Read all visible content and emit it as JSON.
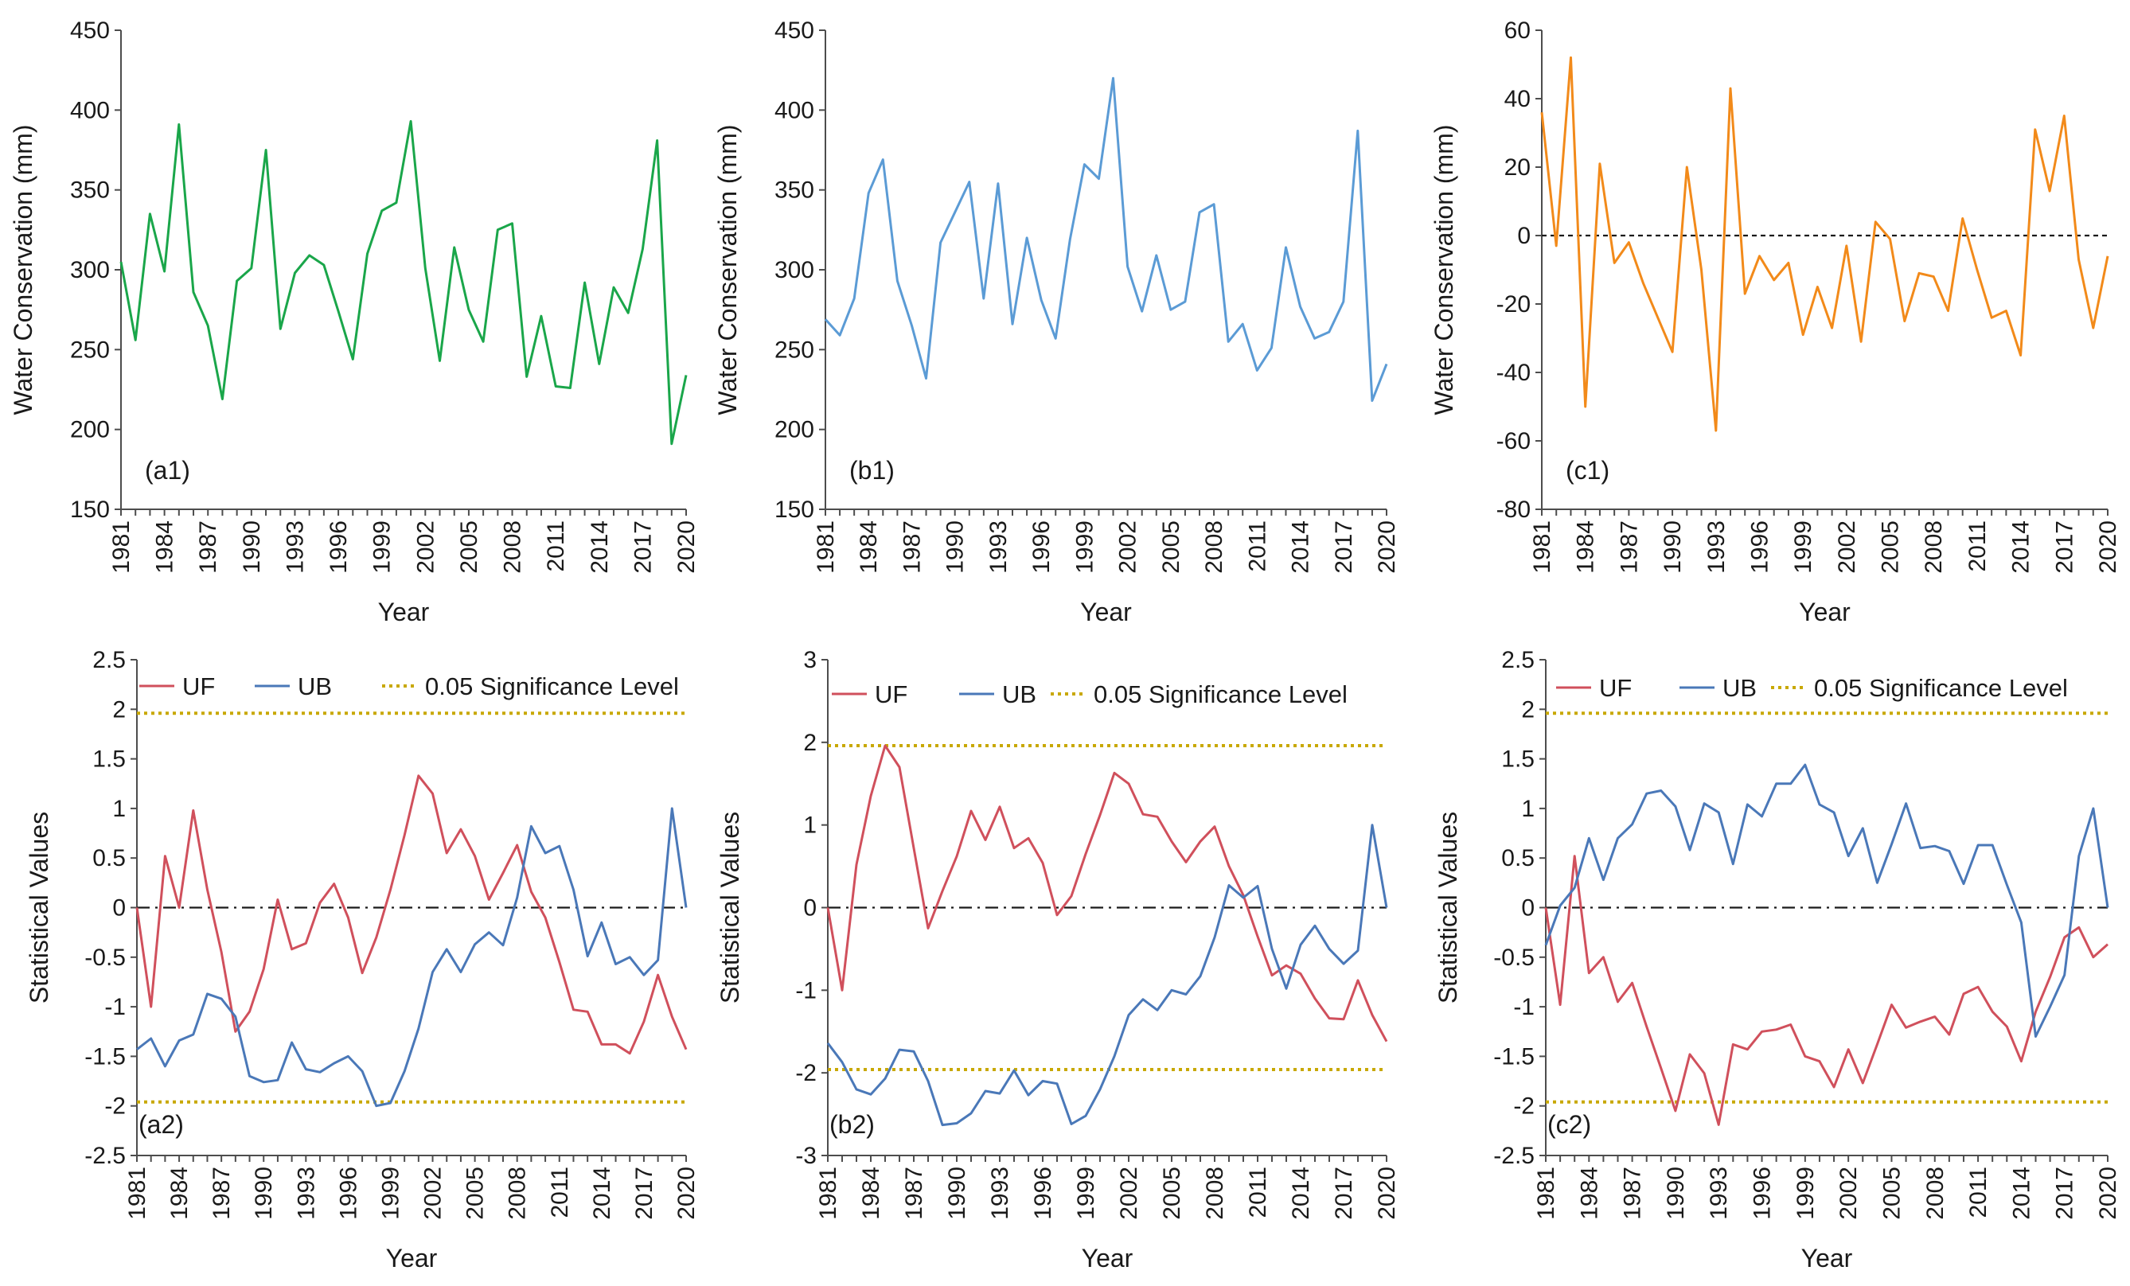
{
  "figure": {
    "years": [
      "1981",
      "1982",
      "1983",
      "1984",
      "1985",
      "1986",
      "1987",
      "1988",
      "1989",
      "1990",
      "1991",
      "1992",
      "1993",
      "1994",
      "1995",
      "1996",
      "1997",
      "1998",
      "1999",
      "2000",
      "2001",
      "2002",
      "2003",
      "2004",
      "2005",
      "2006",
      "2007",
      "2008",
      "2009",
      "2010",
      "2011",
      "2012",
      "2013",
      "2014",
      "2015",
      "2016",
      "2017",
      "2018",
      "2019",
      "2020"
    ],
    "year_ticks": [
      "1981",
      "1984",
      "1987",
      "1990",
      "1993",
      "1996",
      "1999",
      "2002",
      "2005",
      "2008",
      "2011",
      "2014",
      "2017",
      "2020"
    ]
  },
  "colors": {
    "a1": "#1aa64a",
    "b1": "#5b9bd5",
    "c1": "#f28a1a",
    "uf": "#d0505c",
    "ub": "#4a78b8",
    "sig": "#c8a800",
    "zero": "#1a1a1a"
  },
  "chart_data": [
    {
      "id": "a1",
      "type": "line",
      "panel_label": "(a1)",
      "xlabel": "Year",
      "ylabel": "Water Conservation (mm)",
      "ylim": [
        150,
        450
      ],
      "yticks": [
        150,
        200,
        250,
        300,
        350,
        400,
        450
      ],
      "series": [
        {
          "name": "Water Conservation",
          "color_key": "a1",
          "values": [
            305,
            256,
            335,
            299,
            391,
            286,
            265,
            219,
            293,
            301,
            375,
            263,
            298,
            309,
            303,
            274,
            244,
            310,
            337,
            342,
            393,
            301,
            243,
            314,
            275,
            255,
            325,
            329,
            233,
            271,
            227,
            226,
            292,
            241,
            289,
            273,
            313,
            381,
            191,
            234
          ]
        }
      ]
    },
    {
      "id": "b1",
      "type": "line",
      "panel_label": "(b1)",
      "xlabel": "Year",
      "ylabel": "Water Conservation (mm)",
      "ylim": [
        150,
        450
      ],
      "yticks": [
        150,
        200,
        250,
        300,
        350,
        400,
        450
      ],
      "series": [
        {
          "name": "Water Conservation",
          "color_key": "b1",
          "values": [
            269,
            259,
            282,
            348,
            369,
            293,
            265,
            232,
            317,
            336,
            355,
            282,
            354,
            266,
            320,
            281,
            257,
            319,
            366,
            357,
            420,
            302,
            274,
            309,
            275,
            280,
            336,
            341,
            255,
            266,
            237,
            251,
            314,
            277,
            257,
            261,
            280,
            387,
            218,
            241
          ]
        }
      ]
    },
    {
      "id": "c1",
      "type": "line",
      "panel_label": "(c1)",
      "xlabel": "Year",
      "ylabel": "Water Conservation (mm)",
      "ylim": [
        -80,
        60
      ],
      "yticks": [
        -80,
        -60,
        -40,
        -20,
        0,
        20,
        40,
        60
      ],
      "zero_line": true,
      "series": [
        {
          "name": "Water Conservation anomaly",
          "color_key": "c1",
          "values": [
            36,
            -3,
            52,
            -50,
            21,
            -8,
            -2,
            -14,
            -24,
            -34,
            20,
            -10,
            -57,
            43,
            -17,
            -6,
            -13,
            -8,
            -29,
            -15,
            -27,
            -3,
            -31,
            4,
            -1,
            -25,
            -11,
            -12,
            -22,
            5,
            -10,
            -24,
            -22,
            -35,
            31,
            13,
            35,
            -7,
            -27,
            -6
          ]
        }
      ]
    },
    {
      "id": "a2",
      "type": "line",
      "panel_label": "(a2)",
      "xlabel": "Year",
      "ylabel": "Statistical Values",
      "ylim": [
        -2.5,
        2.5
      ],
      "yticks": [
        -2.5,
        -2,
        -1.5,
        -1,
        -0.5,
        0,
        0.5,
        1,
        1.5,
        2,
        2.5
      ],
      "zero_line": true,
      "significance": [
        1.96,
        -1.96
      ],
      "legend": {
        "uf": "UF",
        "ub": "UB",
        "sig": "0.05 Significance Level"
      },
      "series": [
        {
          "name": "UF",
          "color_key": "uf",
          "values": [
            0,
            -1.0,
            0.52,
            0,
            0.98,
            0.18,
            -0.45,
            -1.25,
            -1.05,
            -0.62,
            0.08,
            -0.42,
            -0.36,
            0.05,
            0.24,
            -0.1,
            -0.66,
            -0.3,
            0.18,
            0.73,
            1.33,
            1.15,
            0.55,
            0.79,
            0.52,
            0.08,
            0.35,
            0.63,
            0.16,
            -0.1,
            -0.55,
            -1.03,
            -1.05,
            -1.38,
            -1.38,
            -1.47,
            -1.15,
            -0.68,
            -1.1,
            -1.43
          ]
        },
        {
          "name": "UB",
          "color_key": "ub",
          "values": [
            -1.43,
            -1.32,
            -1.6,
            -1.34,
            -1.28,
            -0.87,
            -0.92,
            -1.1,
            -1.7,
            -1.76,
            -1.74,
            -1.36,
            -1.63,
            -1.66,
            -1.57,
            -1.5,
            -1.65,
            -2.0,
            -1.97,
            -1.65,
            -1.22,
            -0.65,
            -0.42,
            -0.65,
            -0.37,
            -0.25,
            -0.38,
            0.1,
            0.82,
            0.55,
            0.62,
            0.18,
            -0.49,
            -0.15,
            -0.57,
            -0.5,
            -0.68,
            -0.53,
            1.0,
            0
          ]
        }
      ]
    },
    {
      "id": "b2",
      "type": "line",
      "panel_label": "(b2)",
      "xlabel": "Year",
      "ylabel": "Statistical Values",
      "ylim": [
        -3,
        3
      ],
      "yticks": [
        -3,
        -2,
        -1,
        0,
        1,
        2,
        3
      ],
      "zero_line": true,
      "significance": [
        1.96,
        -1.96
      ],
      "legend": {
        "uf": "UF",
        "ub": "UB",
        "sig": "0.05 Significance Level"
      },
      "series": [
        {
          "name": "UF",
          "color_key": "uf",
          "values": [
            0,
            -1.0,
            0.52,
            1.35,
            1.96,
            1.7,
            0.72,
            -0.25,
            0.2,
            0.62,
            1.17,
            0.82,
            1.22,
            0.72,
            0.84,
            0.54,
            -0.09,
            0.14,
            0.65,
            1.12,
            1.63,
            1.5,
            1.13,
            1.1,
            0.8,
            0.55,
            0.8,
            0.98,
            0.5,
            0.15,
            -0.35,
            -0.82,
            -0.7,
            -0.8,
            -1.1,
            -1.34,
            -1.35,
            -0.88,
            -1.3,
            -1.62
          ]
        },
        {
          "name": "UB",
          "color_key": "ub",
          "values": [
            -1.64,
            -1.87,
            -2.2,
            -2.26,
            -2.07,
            -1.72,
            -1.74,
            -2.1,
            -2.63,
            -2.61,
            -2.49,
            -2.22,
            -2.25,
            -1.97,
            -2.27,
            -2.1,
            -2.13,
            -2.62,
            -2.52,
            -2.2,
            -1.8,
            -1.3,
            -1.11,
            -1.24,
            -1.0,
            -1.05,
            -0.83,
            -0.36,
            0.27,
            0.12,
            0.26,
            -0.5,
            -0.98,
            -0.45,
            -0.22,
            -0.5,
            -0.68,
            -0.52,
            1.0,
            0
          ]
        }
      ]
    },
    {
      "id": "c2",
      "type": "line",
      "panel_label": "(c2)",
      "xlabel": "Year",
      "ylabel": "Statistical Values",
      "ylim": [
        -2.5,
        2.5
      ],
      "yticks": [
        -2.5,
        -2,
        -1.5,
        -1,
        -0.5,
        0,
        0.5,
        1,
        1.5,
        2,
        2.5
      ],
      "zero_line": true,
      "significance": [
        1.96,
        -1.96
      ],
      "legend": {
        "uf": "UF",
        "ub": "UB",
        "sig": "0.05 Significance Level"
      },
      "series": [
        {
          "name": "UF",
          "color_key": "uf",
          "values": [
            0,
            -0.98,
            0.52,
            -0.66,
            -0.5,
            -0.95,
            -0.76,
            -1.2,
            -1.62,
            -2.05,
            -1.48,
            -1.67,
            -2.19,
            -1.38,
            -1.43,
            -1.25,
            -1.23,
            -1.18,
            -1.5,
            -1.55,
            -1.81,
            -1.43,
            -1.77,
            -1.38,
            -0.98,
            -1.21,
            -1.15,
            -1.1,
            -1.28,
            -0.87,
            -0.8,
            -1.05,
            -1.2,
            -1.55,
            -1.05,
            -0.7,
            -0.3,
            -0.2,
            -0.5,
            -0.37
          ]
        },
        {
          "name": "UB",
          "color_key": "ub",
          "values": [
            -0.38,
            0.02,
            0.2,
            0.7,
            0.28,
            0.7,
            0.84,
            1.15,
            1.18,
            1.02,
            0.58,
            1.05,
            0.96,
            0.44,
            1.04,
            0.92,
            1.25,
            1.25,
            1.44,
            1.04,
            0.96,
            0.52,
            0.8,
            0.25,
            0.64,
            1.05,
            0.6,
            0.62,
            0.57,
            0.24,
            0.63,
            0.63,
            0.23,
            -0.15,
            -1.3,
            -1.0,
            -0.68,
            0.52,
            1.0,
            0
          ]
        }
      ]
    }
  ]
}
